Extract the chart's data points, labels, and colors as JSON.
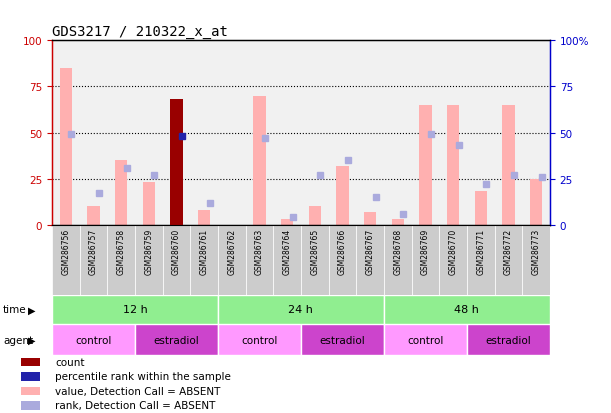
{
  "title": "GDS3217 / 210322_x_at",
  "samples": [
    "GSM286756",
    "GSM286757",
    "GSM286758",
    "GSM286759",
    "GSM286760",
    "GSM286761",
    "GSM286762",
    "GSM286763",
    "GSM286764",
    "GSM286765",
    "GSM286766",
    "GSM286767",
    "GSM286768",
    "GSM286769",
    "GSM286770",
    "GSM286771",
    "GSM286772",
    "GSM286773"
  ],
  "pink_bar_heights": [
    85,
    10,
    35,
    23,
    0,
    8,
    0,
    70,
    3,
    10,
    32,
    7,
    3,
    65,
    65,
    18,
    65,
    25
  ],
  "blue_dot_values": [
    49,
    17,
    31,
    27,
    0,
    12,
    0,
    47,
    4,
    27,
    35,
    15,
    6,
    49,
    43,
    22,
    27,
    26
  ],
  "dark_red_bar_heights": [
    0,
    0,
    0,
    0,
    68,
    0,
    0,
    0,
    0,
    0,
    0,
    0,
    0,
    0,
    0,
    0,
    0,
    0
  ],
  "blue_square_values": [
    0,
    0,
    0,
    0,
    48,
    0,
    0,
    0,
    0,
    0,
    0,
    0,
    0,
    0,
    0,
    0,
    0,
    0
  ],
  "time_groups": [
    {
      "label": "12 h",
      "start": 0,
      "end": 5
    },
    {
      "label": "24 h",
      "start": 6,
      "end": 11
    },
    {
      "label": "48 h",
      "start": 12,
      "end": 17
    }
  ],
  "agent_groups": [
    {
      "label": "control",
      "start": 0,
      "end": 2
    },
    {
      "label": "estradiol",
      "start": 3,
      "end": 5
    },
    {
      "label": "control",
      "start": 6,
      "end": 8
    },
    {
      "label": "estradiol",
      "start": 9,
      "end": 11
    },
    {
      "label": "control",
      "start": 12,
      "end": 14
    },
    {
      "label": "estradiol",
      "start": 15,
      "end": 17
    }
  ],
  "ylim": [
    0,
    100
  ],
  "yticks": [
    0,
    25,
    50,
    75,
    100
  ],
  "left_axis_color": "#CC0000",
  "right_axis_color": "#0000CC",
  "pink_bar_color": "#FFB0B0",
  "blue_dot_color": "#AAAADD",
  "dark_red_color": "#990000",
  "blue_sq_color": "#2222AA",
  "time_row_color": "#90EE90",
  "agent_control_color": "#FF99FF",
  "agent_estradiol_color": "#CC44CC",
  "sample_bg_color": "#CCCCCC"
}
